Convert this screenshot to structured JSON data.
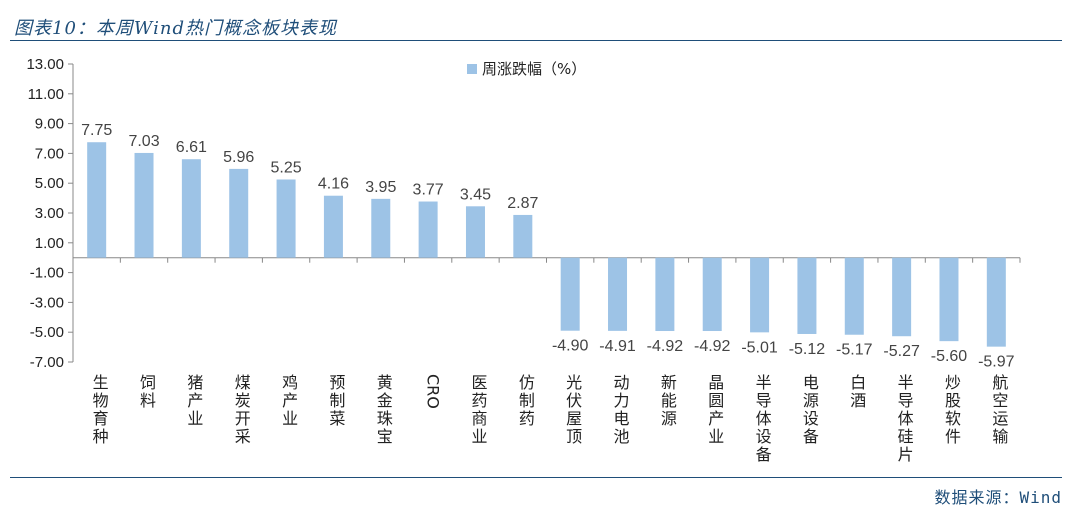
{
  "header": {
    "title": "图表10：本周Wind热门概念板块表现"
  },
  "footer": {
    "source": "数据来源：Wind"
  },
  "colors": {
    "bar": "#9dc3e6",
    "rule": "#1f4e79",
    "axis": "#888888"
  },
  "chart_data": {
    "type": "bar",
    "categories": [
      "生物育种",
      "饲料",
      "猪产业",
      "煤炭开采",
      "鸡产业",
      "预制菜",
      "黄金珠宝",
      "CRO",
      "医药商业",
      "仿制药",
      "光伏屋顶",
      "动力电池",
      "新能源",
      "晶圆产业",
      "半导体设备",
      "电源设备",
      "白酒",
      "半导体硅片",
      "炒股软件",
      "航空运输"
    ],
    "series": [
      {
        "name": "周涨跌幅（%）",
        "values": [
          7.75,
          7.03,
          6.61,
          5.96,
          5.25,
          4.16,
          3.95,
          3.77,
          3.45,
          2.87,
          -4.9,
          -4.91,
          -4.92,
          -4.92,
          -5.01,
          -5.12,
          -5.17,
          -5.27,
          -5.6,
          -5.97
        ]
      }
    ],
    "data_labels": [
      "7.75",
      "7.03",
      "6.61",
      "5.96",
      "5.25",
      "4.16",
      "3.95",
      "3.77",
      "3.45",
      "2.87",
      "-4.90",
      "-4.91",
      "-4.92",
      "-4.92",
      "-5.01",
      "-5.12",
      "-5.17",
      "-5.27",
      "-5.60",
      "-5.97"
    ],
    "y_ticks": [
      "13.00",
      "11.00",
      "9.00",
      "7.00",
      "5.00",
      "3.00",
      "1.00",
      "-1.00",
      "-3.00",
      "-5.00",
      "-7.00"
    ],
    "ylim": [
      -7,
      13
    ],
    "legend_position": "top-center",
    "grid": false
  }
}
